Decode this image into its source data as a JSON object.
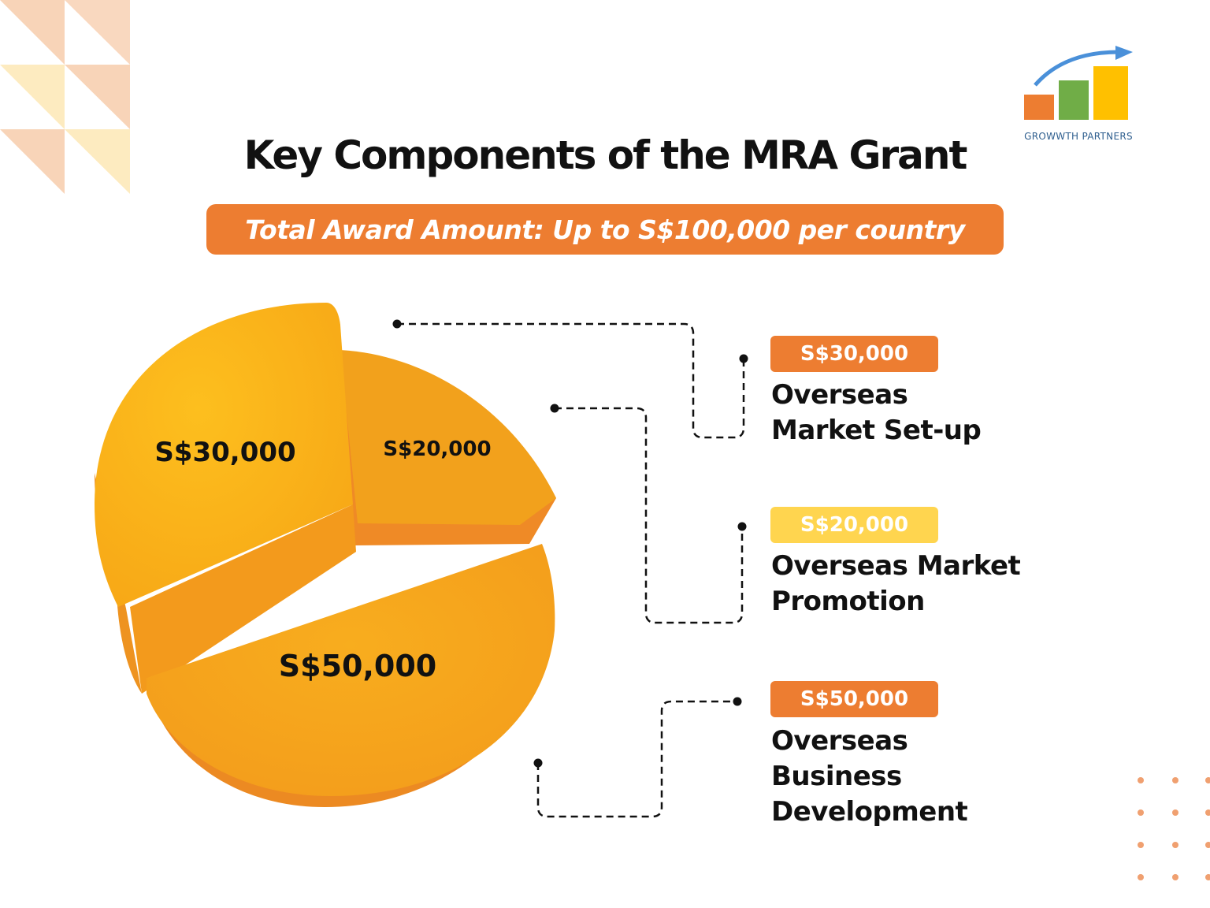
{
  "header": {
    "title": "Key Components of the MRA Grant",
    "award_banner": "Total Award Amount: Up to S$100,000 per country"
  },
  "logo": {
    "text": "GROWWTH PARTNERS",
    "icon": "bar-chart-arrow-icon",
    "colors": {
      "bar1": "#ed7d31",
      "bar2": "#70ad47",
      "bar3": "#ffc000",
      "arrow": "#4a90d9"
    }
  },
  "colors": {
    "accent": "#ed7d31",
    "badge_yellow": "#ffd54f",
    "slice_setup": "#fbb414",
    "slice_promotion": "#f2a11c",
    "slice_development": "#f5a31a",
    "shadow": "#ec8a22"
  },
  "chart_data": {
    "type": "pie",
    "title": "",
    "slices": [
      {
        "name": "Overseas Market Set-up",
        "value": 30000,
        "label": "S$30,000"
      },
      {
        "name": "Overseas Market Promotion",
        "value": 20000,
        "label": "S$20,000"
      },
      {
        "name": "Overseas Business Development",
        "value": 50000,
        "label": "S$50,000"
      }
    ],
    "total": 100000
  },
  "legend": [
    {
      "amount": "S$30,000",
      "label_lines": [
        "Overseas",
        "Market Set-up"
      ],
      "badge_color": "#ed7d31"
    },
    {
      "amount": "S$20,000",
      "label_lines": [
        "Overseas Market",
        "Promotion"
      ],
      "badge_color": "#ffd54f"
    },
    {
      "amount": "S$50,000",
      "label_lines": [
        "Overseas",
        "Business",
        "Development"
      ],
      "badge_color": "#ed7d31"
    }
  ]
}
